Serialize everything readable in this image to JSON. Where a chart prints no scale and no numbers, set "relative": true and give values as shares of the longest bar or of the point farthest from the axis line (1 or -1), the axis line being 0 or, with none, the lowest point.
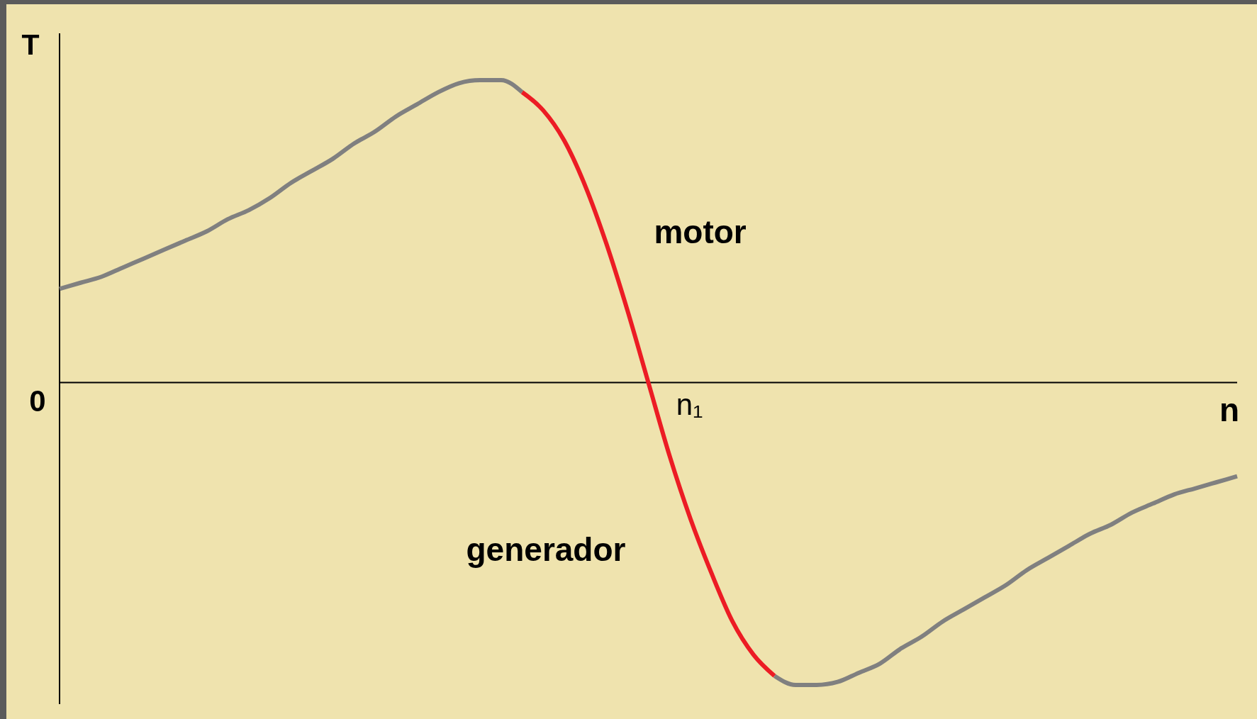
{
  "chart_data": {
    "type": "line",
    "relative": true,
    "ylabel": "T",
    "xlabel": "n",
    "categories": [
      null,
      null,
      null,
      null,
      null,
      null,
      null,
      null,
      null,
      null,
      null,
      null,
      null,
      null,
      null,
      null,
      null,
      null,
      null,
      null,
      null,
      null,
      null,
      null,
      null,
      null,
      null,
      null,
      null,
      null,
      null,
      null,
      null,
      null,
      null,
      null,
      null,
      null,
      null,
      null,
      null,
      null,
      null,
      null,
      null,
      null,
      null,
      null,
      null,
      null,
      null,
      null,
      null,
      null,
      null,
      null,
      null
    ],
    "series": [
      {
        "color": "#808080",
        "values": [
          0.31,
          0.33,
          0.35,
          0.38,
          0.41,
          0.44,
          0.47,
          0.5,
          0.54,
          0.57,
          0.61,
          0.66,
          0.7,
          0.74,
          0.79,
          0.83,
          0.88,
          0.92,
          0.96,
          0.99,
          1.0,
          1.0,
          0.96,
          null,
          null,
          null,
          null,
          null,
          null,
          null,
          null,
          null,
          null,
          null,
          null,
          null,
          null,
          null,
          null,
          null,
          null,
          null,
          null,
          null,
          null,
          null,
          null,
          null,
          null,
          null,
          null,
          null,
          null,
          null,
          null,
          null,
          null
        ]
      },
      {
        "color": "#ec1c24",
        "values": [
          null,
          null,
          null,
          null,
          null,
          null,
          null,
          null,
          null,
          null,
          null,
          null,
          null,
          null,
          null,
          null,
          null,
          null,
          null,
          null,
          null,
          null,
          0.96,
          0.9,
          0.8,
          0.65,
          0.46,
          0.24,
          0,
          -0.24,
          -0.45,
          -0.63,
          -0.79,
          -0.9,
          -0.97,
          null,
          null,
          null,
          null,
          null,
          null,
          null,
          null,
          null,
          null,
          null,
          null,
          null,
          null,
          null,
          null,
          null,
          null,
          null,
          null,
          null,
          null
        ]
      },
      {
        "color": "#808080",
        "values": [
          null,
          null,
          null,
          null,
          null,
          null,
          null,
          null,
          null,
          null,
          null,
          null,
          null,
          null,
          null,
          null,
          null,
          null,
          null,
          null,
          null,
          null,
          null,
          null,
          null,
          null,
          null,
          null,
          null,
          null,
          null,
          null,
          null,
          null,
          -0.97,
          -1.0,
          -1.0,
          -0.99,
          -0.96,
          -0.93,
          -0.88,
          -0.84,
          -0.79,
          -0.75,
          -0.71,
          -0.67,
          -0.62,
          -0.58,
          -0.54,
          -0.5,
          -0.47,
          -0.43,
          -0.4,
          -0.37,
          -0.35,
          -0.33,
          -0.31
        ]
      }
    ],
    "annotations": [
      "motor",
      "0",
      "n₁",
      "generador"
    ]
  }
}
